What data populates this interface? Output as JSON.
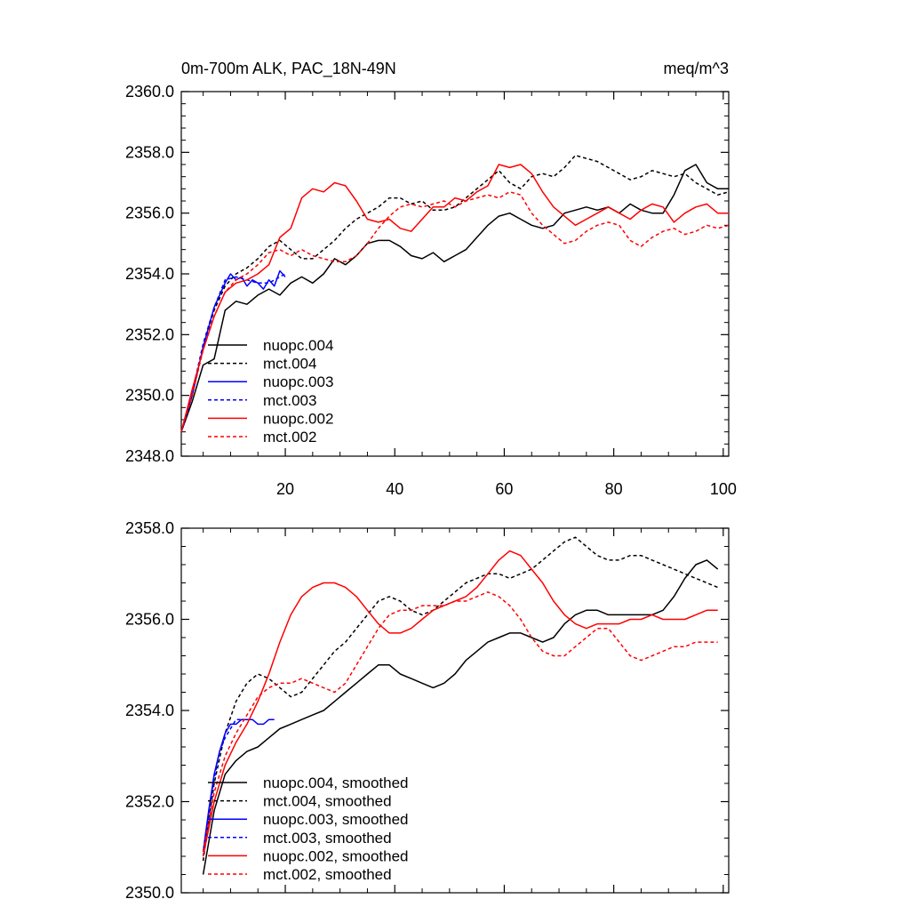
{
  "chart_data": [
    {
      "type": "line",
      "title_left": "0m-700m ALK, PAC_18N-49N",
      "title_right": "meq/m^3",
      "xlim": [
        1,
        101
      ],
      "ylim": [
        2348,
        2360
      ],
      "x_ticks": [
        20,
        40,
        60,
        80,
        100
      ],
      "x_tick_labels": [
        "20",
        "40",
        "60",
        "80",
        "100"
      ],
      "y_ticks": [
        2348,
        2350,
        2352,
        2354,
        2356,
        2358,
        2360
      ],
      "y_tick_labels": [
        "2348.0",
        "2350.0",
        "2352.0",
        "2354.0",
        "2356.0",
        "2358.0",
        "2360.0"
      ],
      "legend_position": "lower-left",
      "series": [
        {
          "name": "nuopc.004",
          "color": "#000000",
          "dash": "solid",
          "x": [
            1,
            3,
            5,
            7,
            9,
            11,
            13,
            15,
            17,
            19,
            21,
            23,
            25,
            27,
            29,
            31,
            33,
            35,
            37,
            39,
            41,
            43,
            45,
            47,
            49,
            51,
            53,
            55,
            57,
            59,
            61,
            63,
            65,
            67,
            69,
            71,
            73,
            75,
            77,
            79,
            81,
            83,
            85,
            87,
            89,
            91,
            93,
            95,
            97,
            99,
            101
          ],
          "y": [
            2348.8,
            2349.8,
            2351.0,
            2351.2,
            2352.8,
            2353.1,
            2353.0,
            2353.3,
            2353.5,
            2353.3,
            2353.7,
            2353.9,
            2353.7,
            2354.0,
            2354.5,
            2354.3,
            2354.6,
            2355.0,
            2355.1,
            2355.1,
            2354.9,
            2354.6,
            2354.5,
            2354.7,
            2354.4,
            2354.6,
            2354.8,
            2355.2,
            2355.6,
            2355.9,
            2356.0,
            2355.8,
            2355.6,
            2355.5,
            2355.6,
            2356.0,
            2356.1,
            2356.2,
            2356.1,
            2356.2,
            2356.0,
            2356.3,
            2356.1,
            2356.0,
            2356.0,
            2356.6,
            2357.4,
            2357.6,
            2357.0,
            2356.8,
            2356.8
          ]
        },
        {
          "name": "mct.004",
          "color": "#000000",
          "dash": "dashed",
          "x": [
            1,
            3,
            5,
            7,
            9,
            11,
            13,
            15,
            17,
            19,
            21,
            23,
            25,
            27,
            29,
            31,
            33,
            35,
            37,
            39,
            41,
            43,
            45,
            47,
            49,
            51,
            53,
            55,
            57,
            59,
            61,
            63,
            65,
            67,
            69,
            71,
            73,
            75,
            77,
            79,
            81,
            83,
            85,
            87,
            89,
            91,
            93,
            95,
            97,
            99,
            101
          ],
          "y": [
            2348.8,
            2350.0,
            2351.6,
            2352.8,
            2353.6,
            2354.0,
            2354.2,
            2354.5,
            2354.9,
            2355.1,
            2354.8,
            2354.5,
            2354.5,
            2354.8,
            2355.1,
            2355.5,
            2355.8,
            2356.0,
            2356.2,
            2356.5,
            2356.5,
            2356.3,
            2356.4,
            2356.1,
            2356.1,
            2356.2,
            2356.5,
            2356.8,
            2357.1,
            2357.4,
            2357.0,
            2356.8,
            2357.2,
            2357.3,
            2357.2,
            2357.5,
            2357.9,
            2357.8,
            2357.7,
            2357.5,
            2357.3,
            2357.1,
            2357.2,
            2357.4,
            2357.3,
            2357.2,
            2357.3,
            2357.0,
            2356.8,
            2356.6,
            2356.7
          ]
        },
        {
          "name": "nuopc.003",
          "color": "#0000ff",
          "dash": "solid",
          "x": [
            1,
            3,
            5,
            7,
            9,
            10,
            11,
            12,
            13,
            14,
            15,
            16,
            17,
            18,
            19,
            20
          ],
          "y": [
            2348.8,
            2350.0,
            2351.6,
            2352.9,
            2353.7,
            2354.0,
            2353.8,
            2353.9,
            2353.6,
            2353.8,
            2353.7,
            2353.5,
            2353.8,
            2353.6,
            2354.1,
            2353.9
          ]
        },
        {
          "name": "mct.003",
          "color": "#0000ff",
          "dash": "dashed",
          "x": [
            1,
            3,
            5,
            7,
            9,
            11,
            13,
            15,
            17,
            19,
            20
          ],
          "y": [
            2348.8,
            2350.1,
            2351.7,
            2352.9,
            2353.8,
            2353.9,
            2353.8,
            2353.7,
            2353.7,
            2353.9,
            2354.0
          ]
        },
        {
          "name": "nuopc.002",
          "color": "#ff0000",
          "dash": "solid",
          "x": [
            1,
            3,
            5,
            7,
            9,
            11,
            13,
            15,
            17,
            19,
            21,
            23,
            25,
            27,
            29,
            31,
            33,
            35,
            37,
            39,
            41,
            43,
            45,
            47,
            49,
            51,
            53,
            55,
            57,
            59,
            61,
            63,
            65,
            67,
            69,
            71,
            73,
            75,
            77,
            79,
            81,
            83,
            85,
            87,
            89,
            91,
            93,
            95,
            97,
            99,
            101
          ],
          "y": [
            2348.8,
            2350.2,
            2351.5,
            2352.6,
            2353.4,
            2353.7,
            2353.8,
            2354.0,
            2354.3,
            2355.2,
            2355.5,
            2356.5,
            2356.8,
            2356.7,
            2357.0,
            2356.9,
            2356.4,
            2355.8,
            2355.7,
            2355.8,
            2355.5,
            2355.4,
            2355.8,
            2356.2,
            2356.2,
            2356.5,
            2356.4,
            2356.7,
            2356.9,
            2357.6,
            2357.5,
            2357.6,
            2357.3,
            2356.7,
            2356.2,
            2355.9,
            2355.6,
            2355.8,
            2356.0,
            2356.2,
            2356.0,
            2355.8,
            2356.1,
            2356.3,
            2356.2,
            2355.7,
            2356.0,
            2356.2,
            2356.3,
            2356.0,
            2356.0
          ]
        },
        {
          "name": "mct.002",
          "color": "#ff0000",
          "dash": "dashed",
          "x": [
            1,
            3,
            5,
            7,
            9,
            11,
            13,
            15,
            17,
            19,
            21,
            23,
            25,
            27,
            29,
            31,
            33,
            35,
            37,
            39,
            41,
            43,
            45,
            47,
            49,
            51,
            53,
            55,
            57,
            59,
            61,
            63,
            65,
            67,
            69,
            71,
            73,
            75,
            77,
            79,
            81,
            83,
            85,
            87,
            89,
            91,
            93,
            95,
            97,
            99,
            101
          ],
          "y": [
            2348.8,
            2350.0,
            2351.5,
            2352.6,
            2353.4,
            2353.8,
            2354.0,
            2354.3,
            2354.7,
            2354.8,
            2354.6,
            2354.8,
            2354.6,
            2354.5,
            2354.4,
            2354.4,
            2354.6,
            2355.0,
            2355.5,
            2355.9,
            2356.2,
            2356.3,
            2356.2,
            2356.3,
            2356.4,
            2356.2,
            2356.4,
            2356.5,
            2356.6,
            2356.5,
            2356.7,
            2356.6,
            2356.0,
            2355.6,
            2355.3,
            2355.0,
            2355.1,
            2355.4,
            2355.6,
            2355.7,
            2355.6,
            2355.1,
            2354.9,
            2355.2,
            2355.4,
            2355.5,
            2355.3,
            2355.4,
            2355.6,
            2355.5,
            2355.6
          ]
        }
      ]
    },
    {
      "type": "line",
      "xlim": [
        1,
        101
      ],
      "ylim": [
        2350,
        2358
      ],
      "x_ticks": [
        20,
        40,
        60,
        80,
        100
      ],
      "y_ticks": [
        2350,
        2352,
        2354,
        2356,
        2358
      ],
      "y_tick_labels": [
        "2350.0",
        "2352.0",
        "2354.0",
        "2356.0",
        "2358.0"
      ],
      "legend_position": "lower-left",
      "series": [
        {
          "name": "nuopc.004, smoothed",
          "color": "#000000",
          "dash": "solid",
          "x": [
            5,
            7,
            9,
            11,
            13,
            15,
            17,
            19,
            21,
            23,
            25,
            27,
            29,
            31,
            33,
            35,
            37,
            39,
            41,
            43,
            45,
            47,
            49,
            51,
            53,
            55,
            57,
            59,
            61,
            63,
            65,
            67,
            69,
            71,
            73,
            75,
            77,
            79,
            81,
            83,
            85,
            87,
            89,
            91,
            93,
            95,
            97,
            99
          ],
          "y": [
            2350.4,
            2351.8,
            2352.6,
            2352.9,
            2353.1,
            2353.2,
            2353.4,
            2353.6,
            2353.7,
            2353.8,
            2353.9,
            2354.0,
            2354.2,
            2354.4,
            2354.6,
            2354.8,
            2355.0,
            2355.0,
            2354.8,
            2354.7,
            2354.6,
            2354.5,
            2354.6,
            2354.8,
            2355.1,
            2355.3,
            2355.5,
            2355.6,
            2355.7,
            2355.7,
            2355.6,
            2355.5,
            2355.6,
            2355.9,
            2356.1,
            2356.2,
            2356.2,
            2356.1,
            2356.1,
            2356.1,
            2356.1,
            2356.1,
            2356.2,
            2356.5,
            2356.9,
            2357.2,
            2357.3,
            2357.1
          ]
        },
        {
          "name": "mct.004, smoothed",
          "color": "#000000",
          "dash": "dashed",
          "x": [
            5,
            7,
            9,
            11,
            13,
            15,
            17,
            19,
            21,
            23,
            25,
            27,
            29,
            31,
            33,
            35,
            37,
            39,
            41,
            43,
            45,
            47,
            49,
            51,
            53,
            55,
            57,
            59,
            61,
            63,
            65,
            67,
            69,
            71,
            73,
            75,
            77,
            79,
            81,
            83,
            85,
            87,
            89,
            91,
            93,
            95,
            97,
            99
          ],
          "y": [
            2350.7,
            2352.4,
            2353.5,
            2354.2,
            2354.6,
            2354.8,
            2354.7,
            2354.5,
            2354.3,
            2354.4,
            2354.7,
            2355.0,
            2355.3,
            2355.5,
            2355.8,
            2356.1,
            2356.4,
            2356.5,
            2356.4,
            2356.2,
            2356.1,
            2356.2,
            2356.4,
            2356.6,
            2356.8,
            2356.9,
            2357.0,
            2357.0,
            2356.9,
            2357.0,
            2357.1,
            2357.3,
            2357.5,
            2357.7,
            2357.8,
            2357.6,
            2357.4,
            2357.3,
            2357.3,
            2357.4,
            2357.4,
            2357.3,
            2357.2,
            2357.1,
            2357.0,
            2356.9,
            2356.8,
            2356.7
          ]
        },
        {
          "name": "nuopc.003, smoothed",
          "color": "#0000ff",
          "dash": "solid",
          "x": [
            5,
            6,
            7,
            8,
            9,
            10,
            11,
            12,
            13,
            14,
            15,
            16,
            17,
            18
          ],
          "y": [
            2350.9,
            2351.8,
            2352.6,
            2353.1,
            2353.5,
            2353.7,
            2353.7,
            2353.8,
            2353.8,
            2353.8,
            2353.7,
            2353.7,
            2353.8,
            2353.8
          ]
        },
        {
          "name": "mct.003, smoothed",
          "color": "#0000ff",
          "dash": "dashed",
          "x": [
            5,
            6,
            7,
            8,
            9,
            10,
            11,
            12,
            13
          ],
          "y": [
            2350.8,
            2351.7,
            2352.5,
            2353.1,
            2353.4,
            2353.6,
            2353.8,
            2353.8,
            2353.8
          ]
        },
        {
          "name": "nuopc.002, smoothed",
          "color": "#ff0000",
          "dash": "solid",
          "x": [
            5,
            7,
            9,
            11,
            13,
            15,
            17,
            19,
            21,
            23,
            25,
            27,
            29,
            31,
            33,
            35,
            37,
            39,
            41,
            43,
            45,
            47,
            49,
            51,
            53,
            55,
            57,
            59,
            61,
            63,
            65,
            67,
            69,
            71,
            73,
            75,
            77,
            79,
            81,
            83,
            85,
            87,
            89,
            91,
            93,
            95,
            97,
            99
          ],
          "y": [
            2350.8,
            2352.0,
            2352.8,
            2353.3,
            2353.7,
            2354.2,
            2354.8,
            2355.5,
            2356.1,
            2356.5,
            2356.7,
            2356.8,
            2356.8,
            2356.7,
            2356.5,
            2356.2,
            2355.9,
            2355.7,
            2355.7,
            2355.8,
            2356.0,
            2356.2,
            2356.3,
            2356.4,
            2356.5,
            2356.7,
            2357.0,
            2357.3,
            2357.5,
            2357.4,
            2357.1,
            2356.8,
            2356.4,
            2356.1,
            2355.9,
            2355.8,
            2355.9,
            2355.9,
            2355.9,
            2356.0,
            2356.0,
            2356.1,
            2356.0,
            2356.0,
            2356.0,
            2356.1,
            2356.2,
            2356.2
          ]
        },
        {
          "name": "mct.002, smoothed",
          "color": "#ff0000",
          "dash": "dashed",
          "x": [
            5,
            7,
            9,
            11,
            13,
            15,
            17,
            19,
            21,
            23,
            25,
            27,
            29,
            31,
            33,
            35,
            37,
            39,
            41,
            43,
            45,
            47,
            49,
            51,
            53,
            55,
            57,
            59,
            61,
            63,
            65,
            67,
            69,
            71,
            73,
            75,
            77,
            79,
            81,
            83,
            85,
            87,
            89,
            91,
            93,
            95,
            97,
            99
          ],
          "y": [
            2350.9,
            2352.2,
            2353.0,
            2353.5,
            2353.9,
            2354.3,
            2354.5,
            2354.6,
            2354.6,
            2354.7,
            2354.6,
            2354.5,
            2354.4,
            2354.6,
            2355.0,
            2355.4,
            2355.8,
            2356.1,
            2356.2,
            2356.2,
            2356.3,
            2356.3,
            2356.3,
            2356.4,
            2356.4,
            2356.5,
            2356.6,
            2356.5,
            2356.3,
            2356.0,
            2355.6,
            2355.3,
            2355.2,
            2355.2,
            2355.4,
            2355.6,
            2355.8,
            2355.8,
            2355.5,
            2355.2,
            2355.1,
            2355.2,
            2355.3,
            2355.4,
            2355.4,
            2355.5,
            2355.5,
            2355.5
          ]
        }
      ]
    }
  ]
}
